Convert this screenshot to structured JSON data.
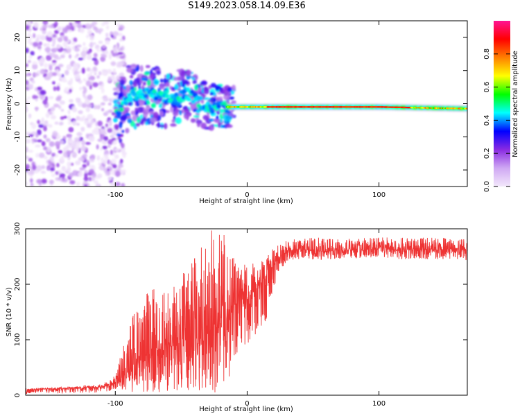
{
  "title": "S149.2023.058.14.09.E36",
  "chart_data": [
    {
      "type": "heatmap",
      "xlabel": "Height of straight line (km)",
      "ylabel": "Frequency (Hz)",
      "xlim": [
        -168,
        167
      ],
      "ylim": [
        -25,
        25
      ],
      "xticks": [
        -100,
        0,
        100
      ],
      "yticks": [
        -20,
        -10,
        0,
        10,
        20
      ],
      "colorbar": {
        "label": "Normalized spectral amplitude",
        "range": [
          0.0,
          1.0
        ],
        "ticks": [
          "0.0",
          "0.2",
          "0.4",
          "0.6",
          "0.8"
        ],
        "colormap": [
          "#f3e8fb",
          "#cfa8f3",
          "#8a2be2",
          "#0000ff",
          "#00ffff",
          "#00ff00",
          "#ffff00",
          "#ff8000",
          "#ff0000",
          "#ff1493"
        ]
      },
      "ridge": {
        "description_points": [
          {
            "x": -168,
            "y": 0
          },
          {
            "x": -100,
            "y": -4
          },
          {
            "x": -90,
            "y": 2
          },
          {
            "x": -75,
            "y": 3
          },
          {
            "x": -60,
            "y": 1
          },
          {
            "x": -45,
            "y": 3
          },
          {
            "x": -30,
            "y": -1
          },
          {
            "x": -15,
            "y": -1
          },
          {
            "x": 0,
            "y": -1
          },
          {
            "x": 20,
            "y": -1
          },
          {
            "x": 100,
            "y": -1
          },
          {
            "x": 167,
            "y": -1.5
          }
        ]
      }
    },
    {
      "type": "line",
      "xlabel": "Height of straight line (km)",
      "ylabel": "SNR (10 * v/v)",
      "xlim": [
        -168,
        167
      ],
      "ylim": [
        0,
        300
      ],
      "xticks": [
        -100,
        0,
        100
      ],
      "yticks": [
        0,
        100,
        200,
        300
      ],
      "color": "#ee3333",
      "series": [
        {
          "x": [
            -168,
            -140,
            -110,
            -100,
            -95,
            -90,
            -85,
            -80,
            -75,
            -70,
            -65,
            -60,
            -55,
            -50,
            -45,
            -40,
            -35,
            -30,
            -25,
            -20,
            -15,
            -10,
            -5,
            0,
            5,
            10,
            15,
            20,
            25,
            30,
            40,
            60,
            80,
            100,
            120,
            140,
            167
          ],
          "y": [
            10,
            12,
            15,
            22,
            30,
            45,
            60,
            70,
            75,
            80,
            85,
            90,
            88,
            92,
            95,
            100,
            105,
            115,
            120,
            130,
            140,
            150,
            160,
            170,
            185,
            200,
            215,
            235,
            250,
            258,
            262,
            260,
            262,
            263,
            262,
            264,
            262
          ]
        }
      ],
      "envelope_top": [
        12,
        15,
        20,
        35,
        85,
        120,
        160,
        180,
        190,
        200,
        205,
        205,
        210,
        215,
        230,
        250,
        270,
        300,
        300,
        300,
        280,
        250,
        240,
        235,
        240,
        245,
        250,
        265,
        275,
        280,
        283,
        285,
        283,
        285,
        284,
        286,
        282
      ],
      "envelope_bottom": [
        2,
        3,
        5,
        8,
        5,
        5,
        5,
        5,
        5,
        5,
        5,
        5,
        5,
        5,
        5,
        5,
        10,
        10,
        5,
        5,
        20,
        30,
        60,
        90,
        100,
        110,
        140,
        190,
        225,
        240,
        245,
        243,
        245,
        245,
        244,
        245,
        243
      ]
    }
  ]
}
